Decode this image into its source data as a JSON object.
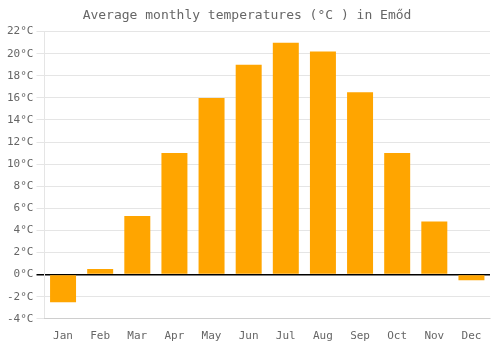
{
  "chart_data": {
    "type": "bar",
    "title": "Average monthly temperatures (°C ) in Emőd",
    "categories": [
      "Jan",
      "Feb",
      "Mar",
      "Apr",
      "May",
      "Jun",
      "Jul",
      "Aug",
      "Sep",
      "Oct",
      "Nov",
      "Dec"
    ],
    "values": [
      -2.5,
      0.5,
      5.3,
      11.0,
      16.0,
      19.0,
      21.0,
      20.2,
      16.5,
      11.0,
      4.8,
      -0.5
    ],
    "color": "#FFA500",
    "ylim": [
      -4,
      22
    ],
    "yticks": [
      {
        "value": -4,
        "label": "-4°C"
      },
      {
        "value": -2,
        "label": "-2°C"
      },
      {
        "value": 0,
        "label": "0°C"
      },
      {
        "value": 2,
        "label": "2°C"
      },
      {
        "value": 4,
        "label": "4°C"
      },
      {
        "value": 6,
        "label": "6°C"
      },
      {
        "value": 8,
        "label": "8°C"
      },
      {
        "value": 10,
        "label": "10°C"
      },
      {
        "value": 12,
        "label": "12°C"
      },
      {
        "value": 14,
        "label": "14°C"
      },
      {
        "value": 16,
        "label": "16°C"
      },
      {
        "value": 18,
        "label": "18°C"
      },
      {
        "value": 20,
        "label": "20°C"
      },
      {
        "value": 22,
        "label": "22°C"
      }
    ],
    "grid": true
  }
}
